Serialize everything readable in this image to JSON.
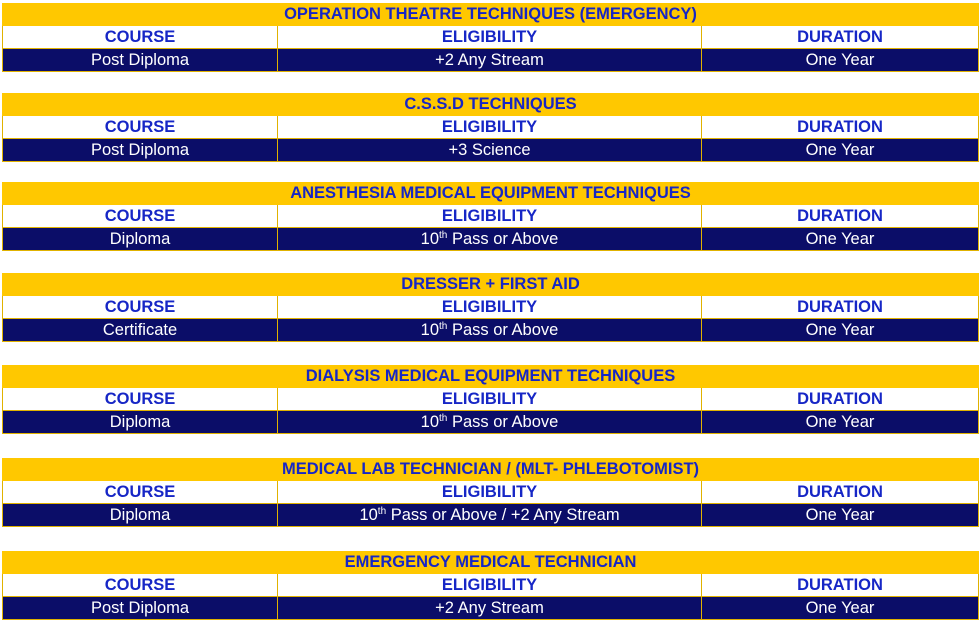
{
  "columns": {
    "course": "COURSE",
    "eligibility": "ELIGIBILITY",
    "duration": "DURATION"
  },
  "sections": [
    {
      "title": "OPERATION THEATRE TECHNIQUES (EMERGENCY)",
      "course": "Post Diploma",
      "eligibility": {
        "prefix": "+2 Any Stream",
        "sup": "",
        "suffix": ""
      },
      "duration": "One Year"
    },
    {
      "title": "C.S.S.D TECHNIQUES",
      "course": "Post Diploma",
      "eligibility": {
        "prefix": "+3 Science",
        "sup": "",
        "suffix": ""
      },
      "duration": "One Year"
    },
    {
      "title": "ANESTHESIA MEDICAL EQUIPMENT TECHNIQUES",
      "course": "Diploma",
      "eligibility": {
        "prefix": "10",
        "sup": "th",
        "suffix": " Pass or Above"
      },
      "duration": "One Year"
    },
    {
      "title": "DRESSER + FIRST AID",
      "course": "Certificate",
      "eligibility": {
        "prefix": "10",
        "sup": "th",
        "suffix": " Pass or Above"
      },
      "duration": "One Year"
    },
    {
      "title": "DIALYSIS MEDICAL EQUIPMENT TECHNIQUES",
      "course": "Diploma",
      "eligibility": {
        "prefix": "10",
        "sup": "th",
        "suffix": " Pass or Above"
      },
      "duration": "One Year"
    },
    {
      "title": "MEDICAL LAB TECHNICIAN / (MLT- PHLEBOTOMIST)",
      "course": "Diploma",
      "eligibility": {
        "prefix": "10",
        "sup": "th",
        "suffix": " Pass or Above / +2 Any Stream"
      },
      "duration": "One Year"
    },
    {
      "title": "EMERGENCY MEDICAL TECHNICIAN",
      "course": "Post Diploma",
      "eligibility": {
        "prefix": "+2 Any Stream",
        "sup": "",
        "suffix": ""
      },
      "duration": "One Year"
    }
  ],
  "colors": {
    "title_background": "#ffc800",
    "heading_text": "#1626c6",
    "data_background": "#0b0d68",
    "data_text": "#ffffff",
    "border": "#e0b200"
  }
}
